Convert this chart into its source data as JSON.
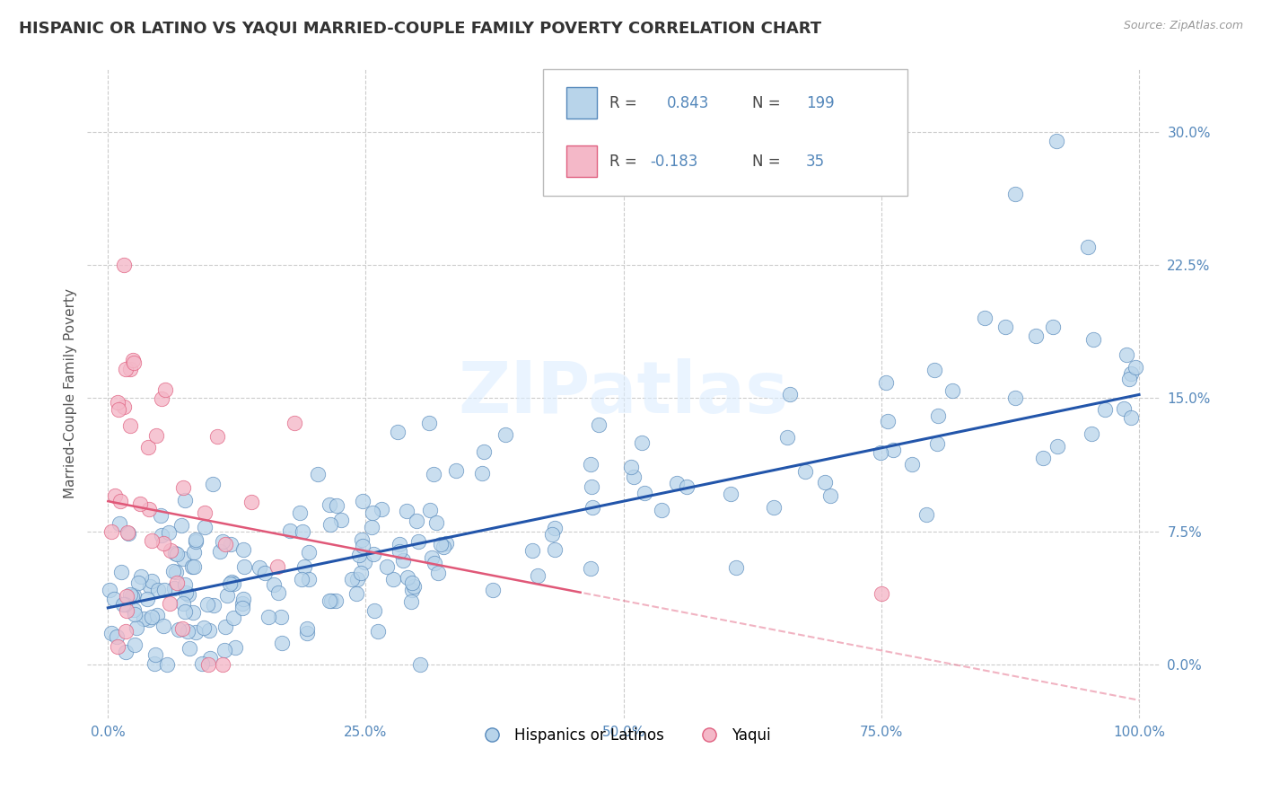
{
  "title": "HISPANIC OR LATINO VS YAQUI MARRIED-COUPLE FAMILY POVERTY CORRELATION CHART",
  "source": "Source: ZipAtlas.com",
  "ylabel": "Married-Couple Family Poverty",
  "xlim": [
    -0.02,
    1.02
  ],
  "ylim": [
    -0.03,
    0.335
  ],
  "yticks": [
    0.0,
    0.075,
    0.15,
    0.225,
    0.3
  ],
  "ytick_labels": [
    "0.0%",
    "7.5%",
    "15.0%",
    "22.5%",
    "30.0%"
  ],
  "xticks": [
    0.0,
    0.25,
    0.5,
    0.75,
    1.0
  ],
  "xtick_labels": [
    "0.0%",
    "25.0%",
    "50.0%",
    "75.0%",
    "100.0%"
  ],
  "blue_fill": "#b8d4ea",
  "blue_edge": "#5588bb",
  "pink_fill": "#f4b8c8",
  "pink_edge": "#e06080",
  "blue_line_color": "#2255aa",
  "pink_line_color": "#e05878",
  "legend_label1": "Hispanics or Latinos",
  "legend_label2": "Yaqui",
  "watermark_text": "ZIPatlas",
  "title_fontsize": 13,
  "axis_label_fontsize": 11,
  "tick_fontsize": 11,
  "background_color": "#ffffff",
  "grid_color": "#cccccc",
  "blue_line_y0": 0.032,
  "blue_line_y1": 0.152,
  "pink_line_y0": 0.092,
  "pink_line_y1": -0.02
}
